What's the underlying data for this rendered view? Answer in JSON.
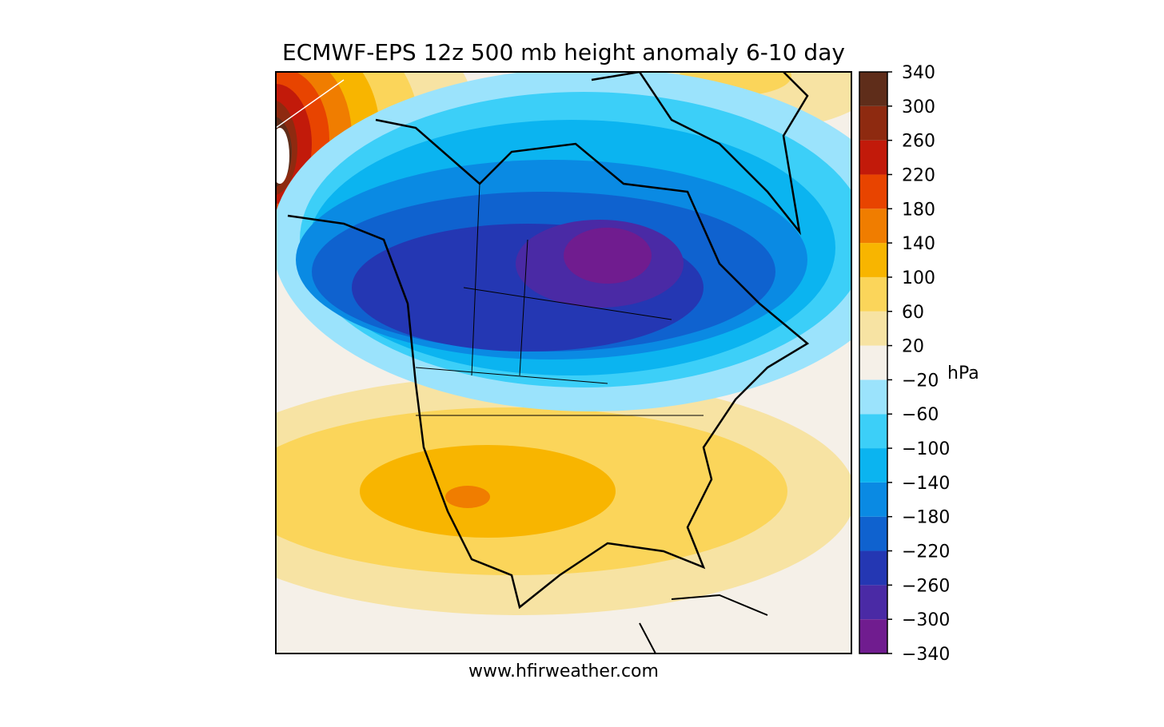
{
  "title": "ECMWF-EPS 12z 500 mb height anomaly 6-10 day",
  "footer": "www.hfirweather.com",
  "colorbar": {
    "unit": "hPa",
    "ticks": [
      {
        "value": -340,
        "label": "−340"
      },
      {
        "value": -300,
        "label": "−300"
      },
      {
        "value": -260,
        "label": "−260"
      },
      {
        "value": -220,
        "label": "−220"
      },
      {
        "value": -180,
        "label": "−180"
      },
      {
        "value": -140,
        "label": "−140"
      },
      {
        "value": -100,
        "label": "−100"
      },
      {
        "value": -60,
        "label": "−60"
      },
      {
        "value": -20,
        "label": "−20"
      },
      20,
      60,
      100,
      140,
      180,
      220,
      260,
      300,
      340
    ],
    "colors": [
      "#701c8f",
      "#4a2aa5",
      "#2437b3",
      "#0f62cf",
      "#0a8ae3",
      "#0bb4f0",
      "#3ccff8",
      "#9be3fc",
      "#f5f0e8",
      "#f7e3a3",
      "#fbd55a",
      "#f8b500",
      "#f07d00",
      "#e84400",
      "#c21a0a",
      "#8e2a10",
      "#5f2d1a"
    ]
  }
}
